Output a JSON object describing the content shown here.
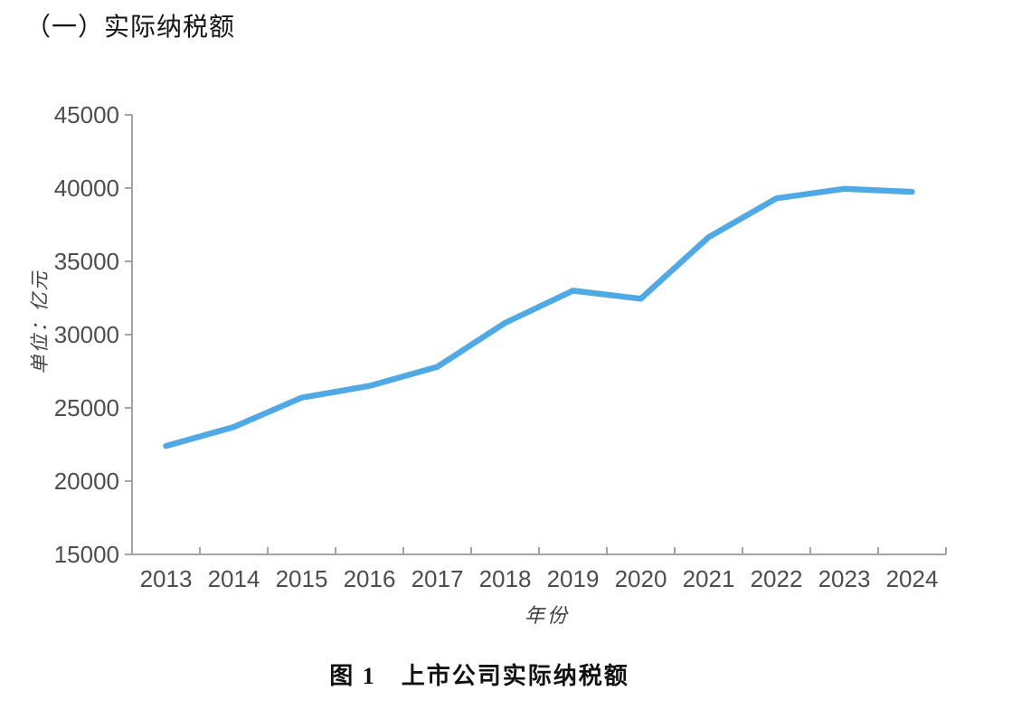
{
  "heading": "（一）实际纳税额",
  "caption": "图 1　上市公司实际纳税额",
  "chart_data": {
    "type": "line",
    "title": "上市公司实际纳税额",
    "xlabel": "年份",
    "ylabel": "单位：亿元",
    "categories": [
      "2013",
      "2014",
      "2015",
      "2016",
      "2017",
      "2018",
      "2019",
      "2020",
      "2021",
      "2022",
      "2023",
      "2024"
    ],
    "series": [
      {
        "name": "实际纳税额",
        "values": [
          22400,
          23700,
          25700,
          26500,
          27800,
          30800,
          33000,
          32450,
          36650,
          39300,
          39950,
          39750
        ]
      }
    ],
    "ylim": [
      15000,
      45000
    ],
    "yticks": [
      15000,
      20000,
      25000,
      30000,
      35000,
      40000,
      45000
    ],
    "grid": false,
    "legend_position": "none",
    "line_color": "#4FA9E4",
    "axis_color": "#9a9a9a",
    "tick_label_color": "#4d4d4d"
  }
}
